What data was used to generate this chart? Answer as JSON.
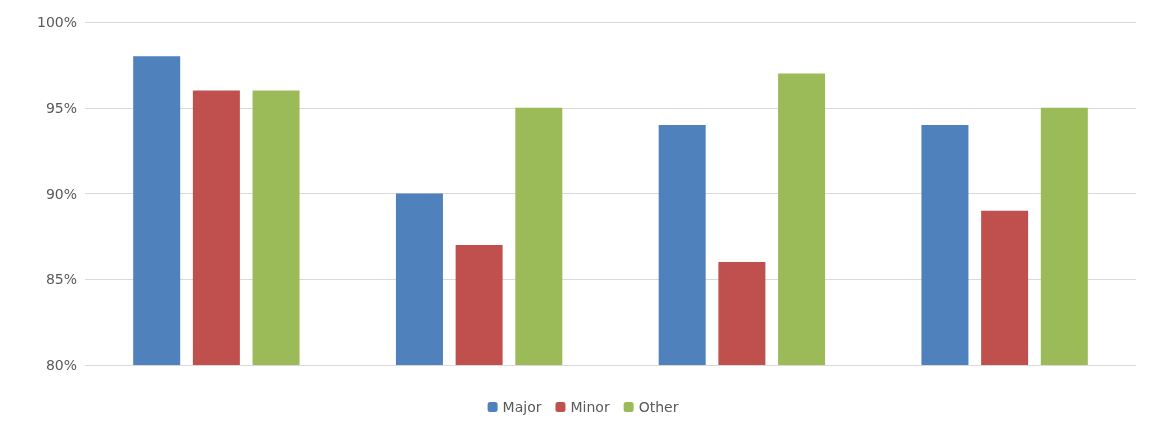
{
  "chart_data": {
    "type": "bar",
    "categories": [
      null,
      null,
      null,
      null
    ],
    "series": [
      {
        "name": "Major",
        "color": "#4f81bd",
        "values": [
          98,
          90,
          94,
          94
        ]
      },
      {
        "name": "Minor",
        "color": "#c0504d",
        "values": [
          96,
          87,
          86,
          89
        ]
      },
      {
        "name": "Other",
        "color": "#9bbb59",
        "values": [
          96,
          95,
          97,
          95
        ]
      }
    ],
    "ylim": [
      80,
      100
    ],
    "yticks": [
      {
        "value": 80,
        "label": "80%"
      },
      {
        "value": 85,
        "label": "85%"
      },
      {
        "value": 90,
        "label": "90%"
      },
      {
        "value": 95,
        "label": "95%"
      },
      {
        "value": 100,
        "label": "100%"
      }
    ],
    "grid": "y",
    "legend": "bottom"
  }
}
